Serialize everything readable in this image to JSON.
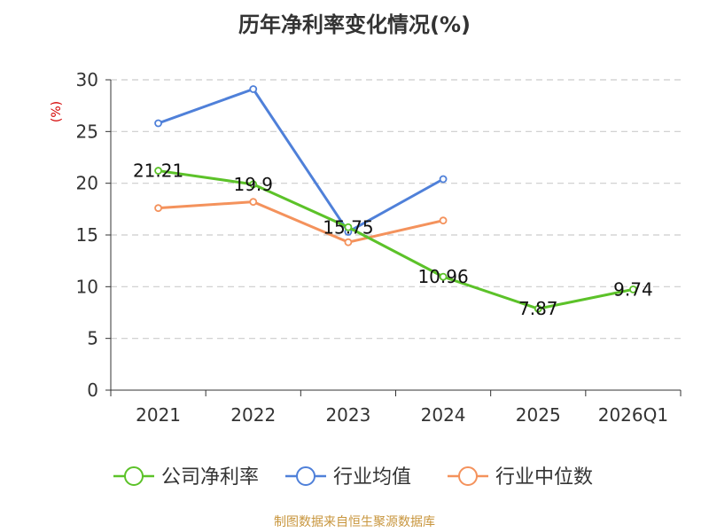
{
  "chart_data": {
    "type": "line",
    "title": "历年净利率变化情况(%)",
    "ylabel": "(%)",
    "xlabel": "",
    "categories": [
      "2021",
      "2022",
      "2023",
      "2024",
      "2025",
      "2026Q1"
    ],
    "ylim": [
      0,
      30
    ],
    "yticks": [
      0,
      5,
      10,
      15,
      20,
      25,
      30
    ],
    "grid": true,
    "legend_position": "bottom",
    "series": [
      {
        "name": "公司净利率",
        "color": "#5cc229",
        "values": [
          21.21,
          19.9,
          15.75,
          10.96,
          7.87,
          9.74
        ],
        "labels": [
          "21.21",
          "19.9",
          "15.75",
          "10.96",
          "7.87",
          "9.74"
        ]
      },
      {
        "name": "行业均值",
        "color": "#4f80d9",
        "values": [
          25.8,
          29.1,
          15.3,
          20.4,
          null,
          null
        ]
      },
      {
        "name": "行业中位数",
        "color": "#f4925c",
        "values": [
          17.6,
          18.2,
          14.3,
          16.4,
          null,
          null
        ]
      }
    ]
  },
  "footer": {
    "source": "制图数据来自恒生聚源数据库"
  }
}
